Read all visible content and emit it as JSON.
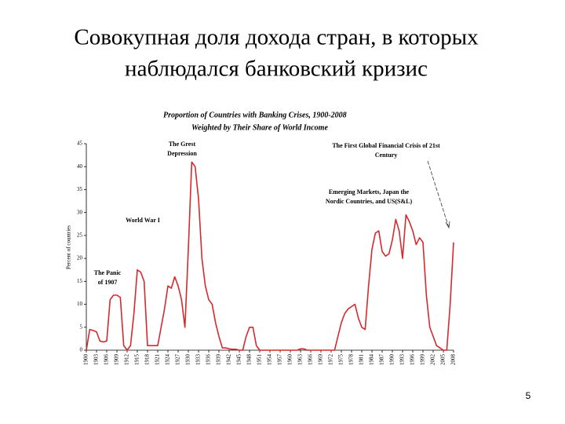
{
  "slide": {
    "title_lines": [
      "Совокупная доля дохода стран, в которых",
      "наблюдался банковский кризис"
    ],
    "page_number": 5
  },
  "chart_data": {
    "type": "line",
    "title": "Proportion of Countries with Banking Crises, 1900-2008",
    "subtitle": "Weighted by Their Share of World Income",
    "y_label": "Percent of countries",
    "color": "#d42a2f",
    "annotations": [
      {
        "lines": [
          "The Grest",
          "Depression"
        ]
      },
      {
        "lines": [
          "World War I"
        ]
      },
      {
        "lines": [
          "The Panic",
          "of 1907"
        ]
      },
      {
        "lines": [
          "Emerging Markets, Japan the",
          "Nordic Countries, and US(S&L)"
        ]
      },
      {
        "lines": [
          "The First Global Financial Crisis of 21st",
          "Century"
        ]
      }
    ],
    "x": [
      1900,
      1901,
      1902,
      1903,
      1904,
      1905,
      1906,
      1907,
      1908,
      1909,
      1910,
      1911,
      1912,
      1913,
      1914,
      1915,
      1916,
      1917,
      1918,
      1919,
      1920,
      1921,
      1922,
      1923,
      1924,
      1925,
      1926,
      1927,
      1928,
      1929,
      1930,
      1931,
      1932,
      1933,
      1934,
      1935,
      1936,
      1937,
      1938,
      1939,
      1940,
      1941,
      1942,
      1943,
      1944,
      1945,
      1946,
      1947,
      1948,
      1949,
      1950,
      1951,
      1952,
      1953,
      1954,
      1955,
      1956,
      1957,
      1958,
      1959,
      1960,
      1961,
      1962,
      1963,
      1964,
      1965,
      1966,
      1967,
      1968,
      1969,
      1970,
      1971,
      1972,
      1973,
      1974,
      1975,
      1976,
      1977,
      1978,
      1979,
      1980,
      1981,
      1982,
      1983,
      1984,
      1985,
      1986,
      1987,
      1988,
      1989,
      1990,
      1991,
      1992,
      1993,
      1994,
      1995,
      1996,
      1997,
      1998,
      1999,
      2000,
      2001,
      2002,
      2003,
      2004,
      2005,
      2006,
      2007,
      2008
    ],
    "values": [
      0,
      4.5,
      4.3,
      4,
      2,
      1.8,
      2,
      11,
      12,
      12,
      11.5,
      1,
      0,
      1,
      8,
      17.5,
      17,
      15,
      1,
      1,
      1,
      1,
      5,
      9,
      14,
      13.5,
      16,
      14,
      11,
      5,
      22,
      41,
      40,
      33,
      20,
      14,
      11,
      10,
      6,
      3,
      0.5,
      0.5,
      0.3,
      0.2,
      0.2,
      0,
      0,
      3,
      5,
      5,
      1,
      0,
      0,
      0,
      0,
      0,
      0,
      0,
      0,
      0,
      0,
      0,
      0,
      0.3,
      0.3,
      0,
      0,
      0,
      0,
      0,
      0,
      0,
      0,
      0,
      3,
      6,
      8,
      9,
      9.5,
      10,
      7,
      5,
      4.5,
      14,
      22,
      25.5,
      26,
      21.5,
      20.5,
      21,
      24,
      28.5,
      26,
      20,
      29.5,
      28,
      26,
      23,
      24.5,
      23.5,
      12,
      5,
      3,
      1,
      0.5,
      0,
      0,
      10,
      23.5
    ],
    "xlim": [
      1900,
      2008
    ],
    "xticks": [
      1900,
      1903,
      1906,
      1909,
      1912,
      1915,
      1918,
      1921,
      1924,
      1927,
      1930,
      1933,
      1936,
      1939,
      1942,
      1945,
      1948,
      1951,
      1954,
      1957,
      1960,
      1963,
      1966,
      1969,
      1972,
      1975,
      1978,
      1981,
      1984,
      1987,
      1990,
      1993,
      1996,
      1999,
      2002,
      2005,
      2008
    ],
    "ylim": [
      0,
      45
    ],
    "yticks": [
      0,
      5,
      10,
      15,
      20,
      25,
      30,
      35,
      40,
      45
    ],
    "grid": false
  }
}
